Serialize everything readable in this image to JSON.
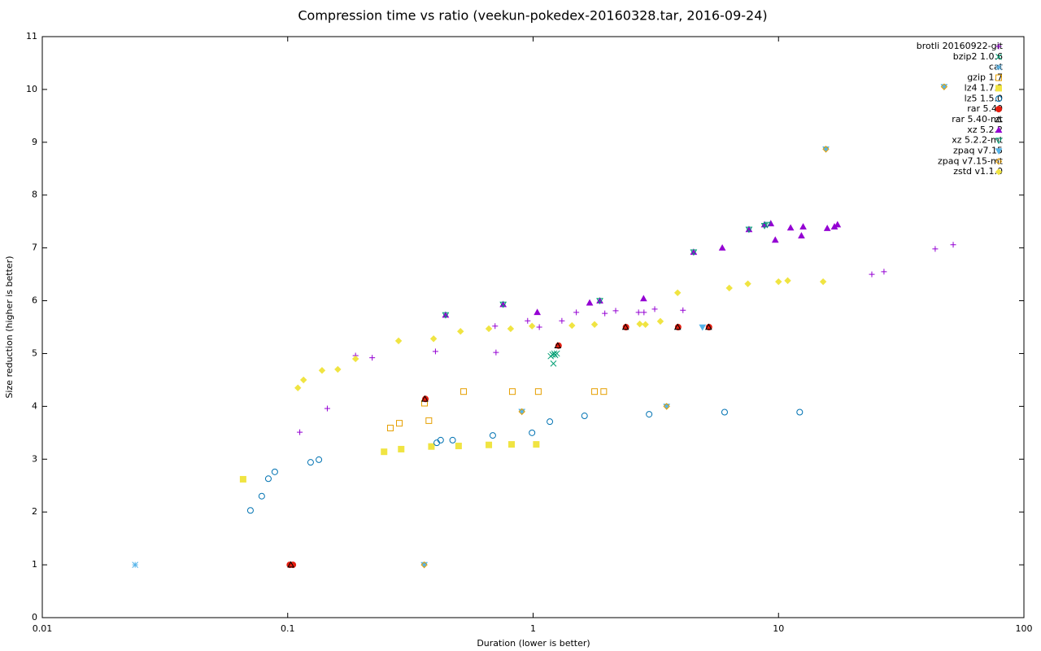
{
  "chart_data": {
    "type": "scatter",
    "title": "Compression time vs ratio (veekun-pokedex-20160328.tar, 2016-09-24)",
    "x_label": "Duration (lower is better)",
    "y_label": "Size reduction (higher is better)",
    "x_scale": "log",
    "xlim": [
      0.01,
      100
    ],
    "xticks": [
      0.01,
      0.1,
      1,
      10,
      100
    ],
    "ylim": [
      0,
      11
    ],
    "yticks": [
      0,
      1,
      2,
      3,
      4,
      5,
      6,
      7,
      8,
      9,
      10,
      11
    ],
    "legend": "top-right",
    "series": [
      {
        "name": "brotli 20160922-git",
        "color": "#9400d3",
        "marker": "plus",
        "x": [
          0.112,
          0.145,
          0.189,
          0.221,
          0.4,
          0.706,
          0.7,
          1.06,
          0.95,
          1.31,
          1.5,
          1.96,
          2.17,
          2.69,
          2.83,
          3.13,
          4.08,
          24,
          26.9,
          43.5,
          51.5
        ],
        "y": [
          3.51,
          3.96,
          4.96,
          4.92,
          5.04,
          5.02,
          5.52,
          5.5,
          5.62,
          5.62,
          5.78,
          5.76,
          5.81,
          5.78,
          5.78,
          5.84,
          5.82,
          6.5,
          6.55,
          6.98,
          7.06
        ]
      },
      {
        "name": "bzip2 1.0.6",
        "color": "#009e73",
        "marker": "cross",
        "x": [
          1.18,
          1.2,
          1.22,
          1.25,
          1.21,
          1.23
        ],
        "y": [
          4.95,
          4.98,
          5.0,
          5.0,
          4.81,
          4.97
        ]
      },
      {
        "name": "cat",
        "color": "#56b4e9",
        "marker": "star",
        "x": [
          0.0239
        ],
        "y": [
          1.0
        ]
      },
      {
        "name": "gzip 1.7",
        "color": "#e69f00",
        "marker": "square-open",
        "x": [
          0.262,
          0.285,
          0.361,
          0.376,
          0.521,
          0.823,
          1.05,
          1.78,
          1.94
        ],
        "y": [
          3.59,
          3.68,
          4.06,
          3.73,
          4.28,
          4.28,
          4.28,
          4.28,
          4.28
        ]
      },
      {
        "name": "lz4 1.7.2",
        "color": "#f0e442",
        "marker": "square",
        "x": [
          0.0658,
          0.247,
          0.29,
          0.385,
          0.497,
          0.66,
          0.817,
          1.03
        ],
        "y": [
          2.62,
          3.14,
          3.19,
          3.24,
          3.25,
          3.27,
          3.28,
          3.28
        ]
      },
      {
        "name": "lz5 1.5.0",
        "color": "#0072b2",
        "marker": "circle-open",
        "x": [
          0.0705,
          0.0784,
          0.0834,
          0.0886,
          0.124,
          0.134,
          0.405,
          0.42,
          0.47,
          0.685,
          0.99,
          1.17,
          1.62,
          2.97,
          6.03,
          12.2
        ],
        "y": [
          2.03,
          2.3,
          2.63,
          2.76,
          2.94,
          2.99,
          3.31,
          3.36,
          3.36,
          3.45,
          3.5,
          3.71,
          3.82,
          3.85,
          3.89,
          3.89
        ]
      },
      {
        "name": "rar 5.40",
        "color": "#e51e10",
        "marker": "circle",
        "x": [
          0.102,
          0.105,
          0.364,
          1.27,
          2.39,
          3.9,
          5.21
        ],
        "y": [
          1.0,
          1.0,
          4.14,
          5.15,
          5.5,
          5.5,
          5.5
        ]
      },
      {
        "name": "rar 5.40-mt",
        "color": "#000000",
        "marker": "triangle-open",
        "x": [
          0.103,
          0.362,
          1.26,
          2.38,
          3.88,
          5.19
        ],
        "y": [
          1.0,
          4.14,
          5.15,
          5.5,
          5.5,
          5.5
        ]
      },
      {
        "name": "xz 5.2.2",
        "color": "#9400d3",
        "marker": "triangle",
        "x": [
          1.04,
          1.7,
          1.87,
          2.82,
          0.44,
          0.755,
          4.51,
          5.9,
          7.58,
          8.77,
          9.3,
          9.7,
          11.2,
          12.6,
          12.4,
          15.8,
          16.9,
          17.4
        ],
        "y": [
          5.78,
          5.96,
          6.0,
          6.04,
          5.73,
          5.93,
          6.92,
          7.0,
          7.35,
          7.44,
          7.46,
          7.15,
          7.38,
          7.4,
          7.23,
          7.37,
          7.4,
          7.44
        ]
      },
      {
        "name": "xz 5.2.2-mt",
        "color": "#009e73",
        "marker": "triangle-down-open",
        "x": [
          0.44,
          0.755,
          1.87,
          4.51,
          7.58,
          8.77,
          9.0
        ],
        "y": [
          5.73,
          5.93,
          6.0,
          6.92,
          7.35,
          7.42,
          7.44
        ]
      },
      {
        "name": "zpaq v7.15",
        "color": "#56b4e9",
        "marker": "triangle-down",
        "x": [
          0.36,
          0.9,
          3.5,
          4.9,
          15.6,
          47.3
        ],
        "y": [
          1.0,
          3.9,
          4.0,
          5.5,
          8.87,
          10.05
        ]
      },
      {
        "name": "zpaq v7.15-mt",
        "color": "#e69f00",
        "marker": "diamond-open",
        "x": [
          0.36,
          0.9,
          3.5,
          15.6,
          47.3
        ],
        "y": [
          1.0,
          3.9,
          4.0,
          8.87,
          10.05
        ]
      },
      {
        "name": "zstd v1.1.0",
        "color": "#f0e442",
        "marker": "diamond",
        "x": [
          0.11,
          0.116,
          0.138,
          0.16,
          0.189,
          0.283,
          0.393,
          0.506,
          0.66,
          0.81,
          0.99,
          1.44,
          1.78,
          2.72,
          2.87,
          3.3,
          3.88,
          6.3,
          7.5,
          10.0,
          10.9,
          15.2
        ],
        "y": [
          4.35,
          4.5,
          4.68,
          4.7,
          4.9,
          5.24,
          5.28,
          5.42,
          5.47,
          5.47,
          5.52,
          5.53,
          5.55,
          5.56,
          5.55,
          5.61,
          6.15,
          6.24,
          6.32,
          6.36,
          6.38,
          6.36
        ]
      }
    ]
  }
}
